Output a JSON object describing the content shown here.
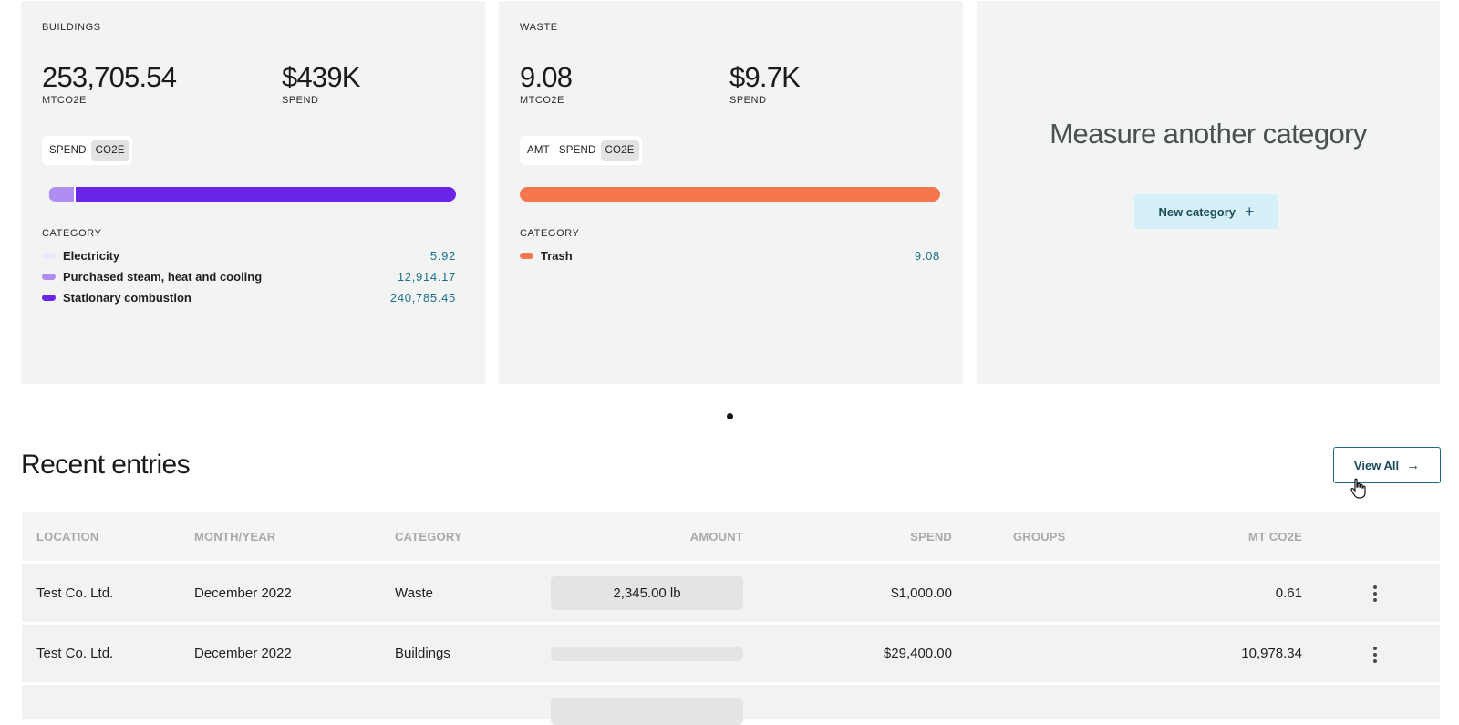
{
  "cards": {
    "buildings": {
      "title": "BUILDINGS",
      "metric1_value": "253,705.54",
      "metric1_label": "MTCO2E",
      "metric2_value": "$439K",
      "metric2_label": "SPEND",
      "toggle": [
        "SPEND",
        "CO2E"
      ],
      "toggle_active": "CO2E",
      "category_heading": "CATEGORY",
      "categories": [
        {
          "name": "Electricity",
          "value": "5.92",
          "color": "#ece8fb"
        },
        {
          "name": "Purchased steam, heat and cooling",
          "value": "12,914.17",
          "color": "#b08df0"
        },
        {
          "name": "Stationary combustion",
          "value": "240,785.45",
          "color": "#6b25e8"
        }
      ]
    },
    "waste": {
      "title": "WASTE",
      "metric1_value": "9.08",
      "metric1_label": "MTCO2E",
      "metric2_value": "$9.7K",
      "metric2_label": "SPEND",
      "toggle": [
        "AMT",
        "SPEND",
        "CO2E"
      ],
      "toggle_active": "CO2E",
      "category_heading": "CATEGORY",
      "categories": [
        {
          "name": "Trash",
          "value": "9.08",
          "color": "#f6774e"
        }
      ]
    },
    "measure": {
      "title": "Measure another category",
      "button_label": "New category",
      "button_icon": "plus-icon"
    }
  },
  "pager": {
    "current": 1,
    "total": 1
  },
  "recent": {
    "title": "Recent entries",
    "view_all_label": "View All",
    "columns": [
      "LOCATION",
      "MONTH/YEAR",
      "CATEGORY",
      "AMOUNT",
      "SPEND",
      "GROUPS",
      "MT CO2E"
    ],
    "rows": [
      {
        "location": "Test Co. Ltd.",
        "month": "December 2022",
        "category": "Waste",
        "amount": "2,345.00 lb",
        "spend": "$1,000.00",
        "groups": "",
        "co2e": "0.61"
      },
      {
        "location": "Test Co. Ltd.",
        "month": "December 2022",
        "category": "Buildings",
        "amount": "",
        "spend": "$29,400.00",
        "groups": "",
        "co2e": "10,978.34"
      }
    ]
  }
}
